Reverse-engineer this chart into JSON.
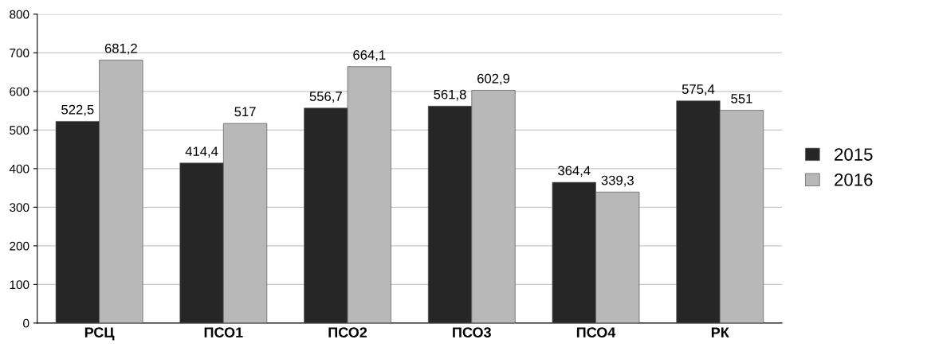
{
  "chart_data": {
    "type": "bar",
    "categories": [
      "РСЦ",
      "ПСО1",
      "ПСО2",
      "ПСО3",
      "ПСО4",
      "РК"
    ],
    "series": [
      {
        "name": "2015",
        "color": "#262626",
        "values": [
          522.5,
          414.4,
          556.7,
          561.8,
          364.4,
          575.4
        ],
        "value_labels": [
          "522,5",
          "414,4",
          "556,7",
          "561,8",
          "364,4",
          "575,4"
        ]
      },
      {
        "name": "2016",
        "color": "#b8b8b8",
        "values": [
          681.2,
          517,
          664.1,
          602.9,
          339.3,
          551
        ],
        "value_labels": [
          "681,2",
          "517",
          "664,1",
          "602,9",
          "339,3",
          "551"
        ]
      }
    ],
    "ylim": [
      0,
      800
    ],
    "yticks": [
      0,
      100,
      200,
      300,
      400,
      500,
      600,
      700,
      800
    ],
    "grid": "y",
    "legend": "right"
  }
}
